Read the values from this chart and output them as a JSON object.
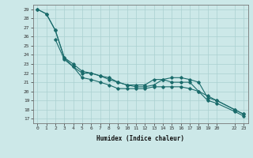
{
  "xlabel": "Humidex (Indice chaleur)",
  "bg_color": "#cce8e8",
  "grid_color": "#aad0d0",
  "line_color": "#1a6b6b",
  "ylim": [
    16.5,
    29.5
  ],
  "xlim": [
    -0.5,
    23.5
  ],
  "yticks": [
    17,
    18,
    19,
    20,
    21,
    22,
    23,
    24,
    25,
    26,
    27,
    28,
    29
  ],
  "xticks": [
    0,
    1,
    2,
    3,
    4,
    5,
    6,
    7,
    8,
    9,
    10,
    11,
    12,
    13,
    14,
    15,
    16,
    17,
    18,
    19,
    20,
    22,
    23
  ],
  "xtick_labels": [
    "0",
    "1",
    "2",
    "3",
    "4",
    "5",
    "6",
    "7",
    "8",
    "9",
    "10",
    "11",
    "12",
    "13",
    "14",
    "15",
    "16",
    "17",
    "18",
    "19",
    "20",
    "22",
    "23"
  ],
  "line1_x": [
    0,
    1,
    2,
    3,
    4,
    5,
    6,
    7,
    8,
    9,
    10,
    11,
    12,
    13,
    14,
    15,
    16,
    17,
    18,
    19,
    20,
    22,
    23
  ],
  "line1_y": [
    29.0,
    28.5,
    26.7,
    23.7,
    23.0,
    22.2,
    22.0,
    21.7,
    21.3,
    21.0,
    20.7,
    20.7,
    20.7,
    21.3,
    21.3,
    21.5,
    21.5,
    21.3,
    21.0,
    19.3,
    19.0,
    18.0,
    17.5
  ],
  "line2_x": [
    2,
    3,
    4,
    5,
    6,
    7,
    8,
    9,
    10,
    11,
    12,
    13,
    14,
    15,
    16,
    17,
    18,
    19,
    20,
    22,
    23
  ],
  "line2_y": [
    25.7,
    23.5,
    22.7,
    22.0,
    22.0,
    21.7,
    21.5,
    21.0,
    20.7,
    20.5,
    20.5,
    20.7,
    21.3,
    21.0,
    21.0,
    21.0,
    20.0,
    19.5,
    19.0,
    18.0,
    17.5
  ],
  "line3_x": [
    0,
    1,
    2,
    3,
    4,
    5,
    6,
    7,
    8,
    9,
    10,
    11,
    12,
    13,
    14,
    15,
    16,
    17,
    18,
    19,
    20,
    22,
    23
  ],
  "line3_y": [
    29.0,
    28.5,
    26.7,
    23.7,
    22.7,
    21.5,
    21.3,
    21.0,
    20.7,
    20.3,
    20.3,
    20.3,
    20.3,
    20.5,
    20.5,
    20.5,
    20.5,
    20.3,
    20.0,
    19.0,
    18.7,
    17.8,
    17.3
  ]
}
